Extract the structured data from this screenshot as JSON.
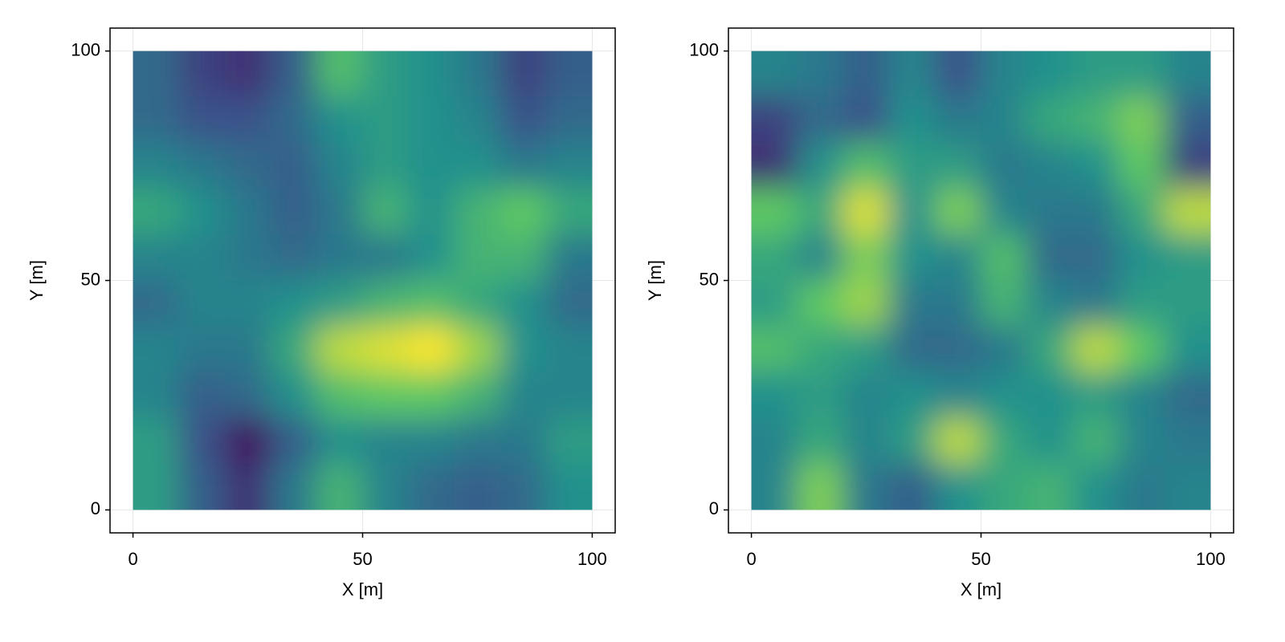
{
  "chart_data": [
    {
      "type": "heatmap",
      "xlabel": "X [m]",
      "ylabel": "Y [m]",
      "colormap": "viridis",
      "grid": true,
      "xlim": [
        -5,
        105
      ],
      "ylim": [
        -5,
        105
      ],
      "xticks": [
        0,
        50,
        100
      ],
      "yticks": [
        0,
        50,
        100
      ],
      "x": [
        5,
        15,
        25,
        35,
        45,
        55,
        65,
        75,
        85,
        95
      ],
      "y": [
        95,
        85,
        75,
        65,
        55,
        45,
        35,
        25,
        15,
        5
      ],
      "z": [
        [
          0.35,
          0.2,
          0.15,
          0.3,
          0.7,
          0.55,
          0.5,
          0.4,
          0.2,
          0.3
        ],
        [
          0.35,
          0.25,
          0.25,
          0.35,
          0.5,
          0.55,
          0.5,
          0.45,
          0.25,
          0.35
        ],
        [
          0.45,
          0.4,
          0.35,
          0.3,
          0.45,
          0.55,
          0.5,
          0.5,
          0.4,
          0.45
        ],
        [
          0.6,
          0.5,
          0.4,
          0.3,
          0.4,
          0.65,
          0.5,
          0.65,
          0.75,
          0.6
        ],
        [
          0.45,
          0.45,
          0.4,
          0.35,
          0.4,
          0.4,
          0.5,
          0.65,
          0.65,
          0.4
        ],
        [
          0.35,
          0.45,
          0.45,
          0.5,
          0.55,
          0.65,
          0.7,
          0.6,
          0.5,
          0.35
        ],
        [
          0.45,
          0.4,
          0.4,
          0.6,
          0.9,
          0.95,
          1.0,
          0.85,
          0.5,
          0.45
        ],
        [
          0.45,
          0.3,
          0.35,
          0.5,
          0.7,
          0.75,
          0.75,
          0.65,
          0.45,
          0.45
        ],
        [
          0.55,
          0.25,
          0.05,
          0.3,
          0.5,
          0.45,
          0.45,
          0.4,
          0.4,
          0.55
        ],
        [
          0.55,
          0.3,
          0.15,
          0.4,
          0.65,
          0.45,
          0.35,
          0.3,
          0.35,
          0.5
        ]
      ]
    },
    {
      "type": "heatmap",
      "xlabel": "X [m]",
      "ylabel": "Y [m]",
      "colormap": "viridis",
      "grid": true,
      "xlim": [
        -5,
        105
      ],
      "ylim": [
        -5,
        105
      ],
      "xticks": [
        0,
        50,
        100
      ],
      "yticks": [
        0,
        50,
        100
      ],
      "x": [
        5,
        15,
        25,
        35,
        45,
        55,
        65,
        75,
        85,
        95
      ],
      "y": [
        95,
        85,
        75,
        65,
        55,
        45,
        35,
        25,
        15,
        5
      ],
      "z": [
        [
          0.45,
          0.4,
          0.3,
          0.45,
          0.25,
          0.45,
          0.5,
          0.55,
          0.55,
          0.45
        ],
        [
          0.2,
          0.35,
          0.25,
          0.5,
          0.4,
          0.45,
          0.6,
          0.65,
          0.8,
          0.3
        ],
        [
          0.15,
          0.5,
          0.7,
          0.55,
          0.55,
          0.4,
          0.45,
          0.5,
          0.75,
          0.2
        ],
        [
          0.75,
          0.6,
          0.95,
          0.5,
          0.8,
          0.45,
          0.4,
          0.4,
          0.6,
          0.9
        ],
        [
          0.6,
          0.45,
          0.8,
          0.5,
          0.45,
          0.7,
          0.35,
          0.35,
          0.5,
          0.55
        ],
        [
          0.55,
          0.75,
          0.85,
          0.4,
          0.4,
          0.65,
          0.45,
          0.4,
          0.55,
          0.55
        ],
        [
          0.7,
          0.6,
          0.55,
          0.35,
          0.35,
          0.4,
          0.6,
          0.9,
          0.75,
          0.5
        ],
        [
          0.5,
          0.55,
          0.45,
          0.5,
          0.45,
          0.5,
          0.5,
          0.55,
          0.45,
          0.35
        ],
        [
          0.45,
          0.6,
          0.45,
          0.55,
          0.9,
          0.6,
          0.5,
          0.65,
          0.45,
          0.4
        ],
        [
          0.45,
          0.8,
          0.4,
          0.3,
          0.5,
          0.6,
          0.65,
          0.5,
          0.4,
          0.45
        ]
      ]
    }
  ]
}
